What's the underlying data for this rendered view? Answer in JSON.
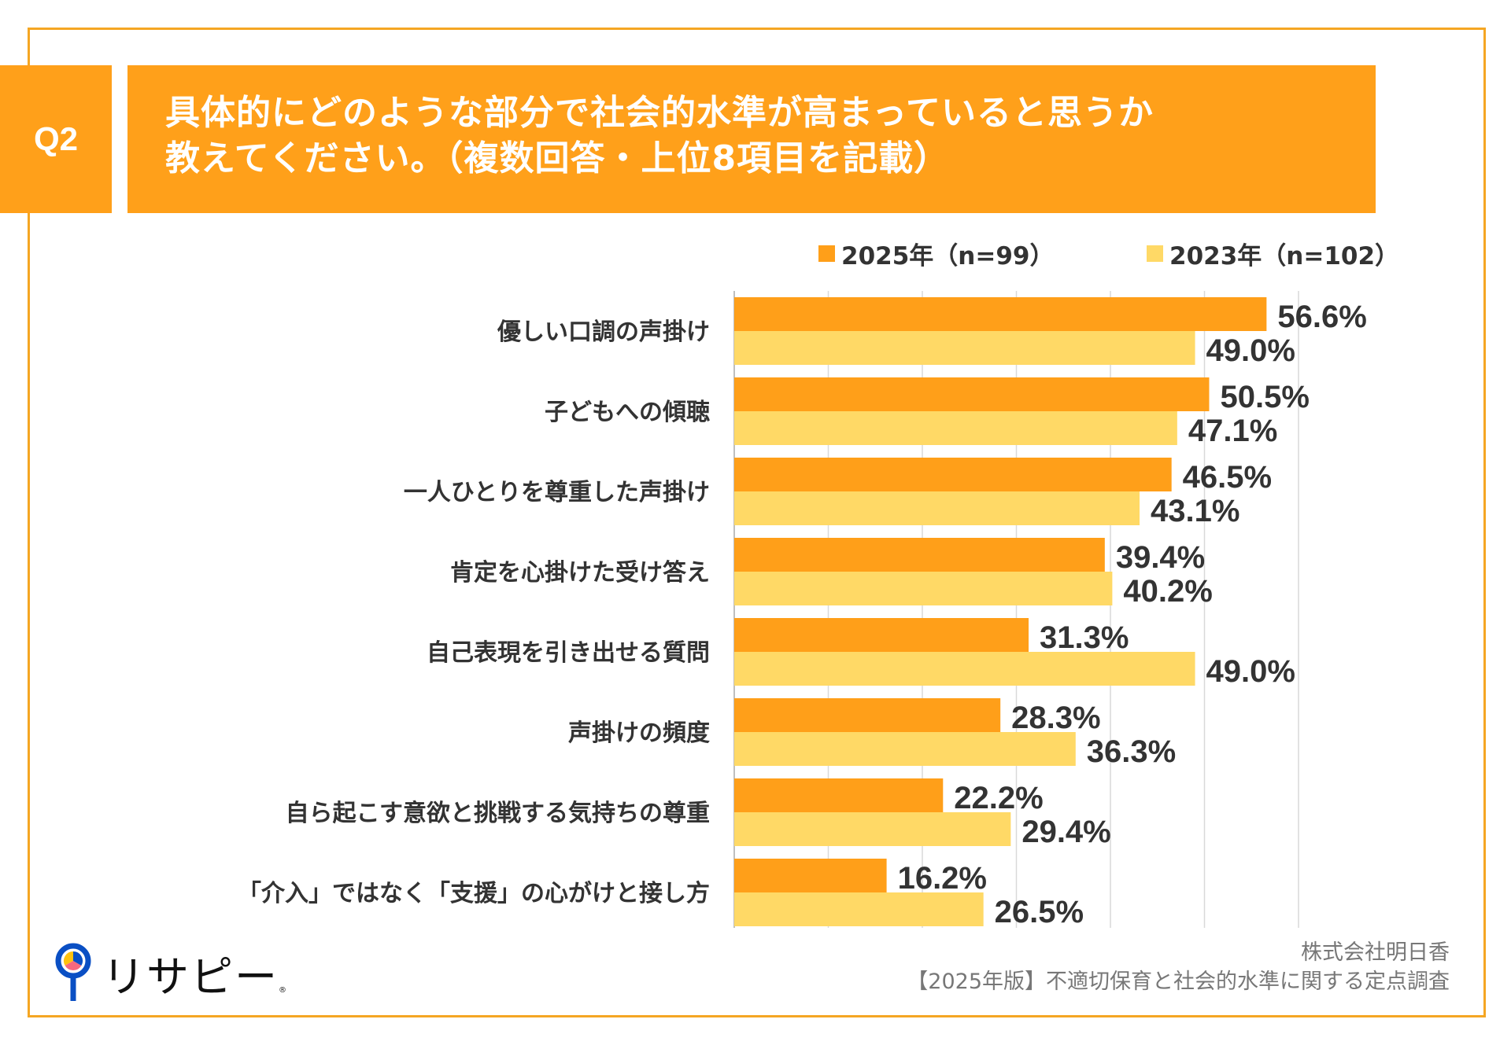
{
  "header": {
    "badge": "Q2",
    "title_lines": [
      "具体的にどのような部分で社会的水準が高まっていると思うか",
      "教えてください。（複数回答・上位8項目を記載）"
    ]
  },
  "colors": {
    "accent": "#FFA01A",
    "frame": "#F5A623",
    "series_2025": "#FF9F19",
    "series_2023": "#FFD966",
    "gridline": "#D9D9D9",
    "text": "#333333"
  },
  "legend": [
    {
      "label": "2025年（n=99）",
      "color": "#FF9F19"
    },
    {
      "label": "2023年（n=102）",
      "color": "#FFD966"
    }
  ],
  "chart_data": {
    "type": "bar",
    "orientation": "horizontal",
    "title": "具体的にどのような部分で社会的水準が高まっていると思うか教えてください。（複数回答・上位8項目を記載）",
    "xlabel": "",
    "ylabel": "",
    "xlim": [
      0,
      60
    ],
    "grid": true,
    "grid_step": 10,
    "tick_labels_shown": false,
    "legend_position": "top-right",
    "unit": "%",
    "categories": [
      "優しい口調の声掛け",
      "子どもへの傾聴",
      "一人ひとりを尊重した声掛け",
      "肯定を心掛けた受け答え",
      "自己表現を引き出せる質問",
      "声掛けの頻度",
      "自ら起こす意欲と挑戦する気持ちの尊重",
      "「介入」ではなく「支援」の心がけと接し方"
    ],
    "series": [
      {
        "name": "2025年（n=99）",
        "color": "#FF9F19",
        "values": [
          56.6,
          50.5,
          46.5,
          39.4,
          31.3,
          28.3,
          22.2,
          16.2
        ],
        "labels": [
          "56.6%",
          "50.5%",
          "46.5%",
          "39.4%",
          "31.3%",
          "28.3%",
          "22.2%",
          "16.2%"
        ]
      },
      {
        "name": "2023年（n=102）",
        "color": "#FFD966",
        "values": [
          49.0,
          47.1,
          43.1,
          40.2,
          49.0,
          36.3,
          29.4,
          26.5
        ],
        "labels": [
          "49.0%",
          "47.1%",
          "43.1%",
          "40.2%",
          "49.0%",
          "36.3%",
          "29.4%",
          "26.5%"
        ]
      }
    ]
  },
  "logo": {
    "text": "リサピー",
    "registered_mark": "®"
  },
  "footer": {
    "company": "株式会社明日香",
    "survey": "【2025年版】不適切保育と社会的水準に関する定点調査"
  }
}
